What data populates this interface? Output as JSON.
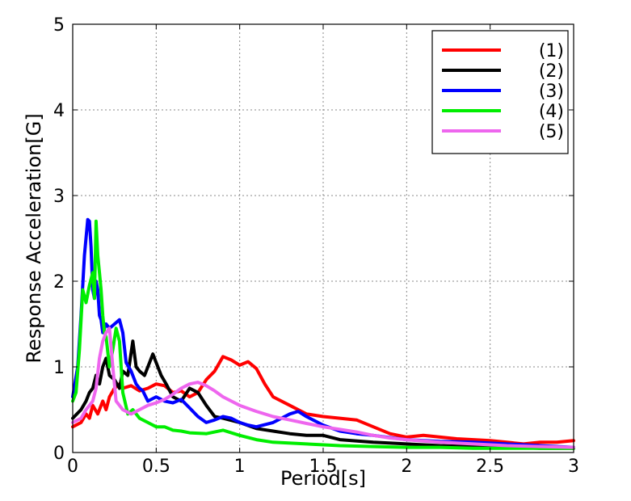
{
  "chart_data": {
    "type": "line",
    "title": "",
    "xlabel": "Period[s]",
    "ylabel": "Response Acceleration[G]",
    "xlim": [
      0,
      3
    ],
    "ylim": [
      0,
      5
    ],
    "xticks": [
      "0",
      "0.5",
      "1",
      "1.5",
      "2",
      "2.5",
      "3"
    ],
    "yticks": [
      "0",
      "1",
      "2",
      "3",
      "4",
      "5"
    ],
    "grid": true,
    "legend_position": "top-right",
    "series": [
      {
        "name": "(1)",
        "color": "#ff0000",
        "x": [
          0.0,
          0.05,
          0.08,
          0.1,
          0.12,
          0.15,
          0.18,
          0.2,
          0.22,
          0.25,
          0.28,
          0.3,
          0.35,
          0.4,
          0.45,
          0.5,
          0.55,
          0.6,
          0.65,
          0.7,
          0.75,
          0.8,
          0.85,
          0.9,
          0.95,
          1.0,
          1.05,
          1.1,
          1.15,
          1.2,
          1.3,
          1.4,
          1.5,
          1.6,
          1.7,
          1.8,
          1.9,
          2.0,
          2.1,
          2.2,
          2.3,
          2.4,
          2.5,
          2.6,
          2.7,
          2.8,
          2.9,
          3.0
        ],
        "y": [
          0.3,
          0.35,
          0.45,
          0.4,
          0.55,
          0.45,
          0.6,
          0.5,
          0.65,
          0.75,
          0.8,
          0.75,
          0.78,
          0.72,
          0.75,
          0.8,
          0.78,
          0.7,
          0.72,
          0.65,
          0.7,
          0.85,
          0.95,
          1.12,
          1.08,
          1.02,
          1.06,
          0.98,
          0.8,
          0.65,
          0.55,
          0.45,
          0.42,
          0.4,
          0.38,
          0.3,
          0.22,
          0.18,
          0.2,
          0.18,
          0.16,
          0.15,
          0.14,
          0.12,
          0.1,
          0.12,
          0.12,
          0.14
        ]
      },
      {
        "name": "(2)",
        "color": "#000000",
        "x": [
          0.0,
          0.05,
          0.08,
          0.1,
          0.12,
          0.14,
          0.16,
          0.18,
          0.2,
          0.22,
          0.25,
          0.28,
          0.3,
          0.33,
          0.36,
          0.38,
          0.4,
          0.43,
          0.46,
          0.48,
          0.5,
          0.53,
          0.56,
          0.6,
          0.65,
          0.7,
          0.75,
          0.8,
          0.85,
          0.9,
          1.0,
          1.1,
          1.2,
          1.3,
          1.4,
          1.5,
          1.6,
          1.8,
          2.0,
          2.2,
          2.4,
          2.6,
          2.8,
          3.0
        ],
        "y": [
          0.4,
          0.5,
          0.6,
          0.7,
          0.75,
          0.9,
          0.8,
          1.0,
          1.1,
          0.9,
          0.85,
          0.75,
          0.95,
          0.9,
          1.3,
          1.0,
          0.95,
          0.9,
          1.05,
          1.15,
          1.05,
          0.9,
          0.8,
          0.65,
          0.6,
          0.75,
          0.7,
          0.55,
          0.42,
          0.4,
          0.35,
          0.28,
          0.25,
          0.22,
          0.2,
          0.2,
          0.15,
          0.12,
          0.1,
          0.08,
          0.07,
          0.06,
          0.05,
          0.05
        ]
      },
      {
        "name": "(3)",
        "color": "#0000ff",
        "x": [
          0.0,
          0.03,
          0.05,
          0.07,
          0.09,
          0.1,
          0.11,
          0.12,
          0.13,
          0.14,
          0.15,
          0.16,
          0.17,
          0.18,
          0.2,
          0.22,
          0.25,
          0.28,
          0.3,
          0.32,
          0.35,
          0.38,
          0.4,
          0.42,
          0.45,
          0.5,
          0.55,
          0.6,
          0.65,
          0.7,
          0.75,
          0.8,
          0.85,
          0.9,
          0.95,
          1.0,
          1.05,
          1.1,
          1.2,
          1.3,
          1.35,
          1.4,
          1.5,
          1.6,
          1.7,
          1.8,
          2.0,
          2.2,
          2.4,
          2.6,
          2.8,
          3.0
        ],
        "y": [
          0.65,
          1.0,
          1.6,
          2.3,
          2.72,
          2.7,
          2.4,
          1.9,
          1.8,
          2.0,
          1.9,
          1.6,
          1.55,
          1.4,
          1.5,
          1.45,
          1.5,
          1.55,
          1.4,
          1.05,
          0.95,
          0.8,
          0.75,
          0.72,
          0.6,
          0.65,
          0.6,
          0.58,
          0.62,
          0.52,
          0.42,
          0.35,
          0.38,
          0.42,
          0.4,
          0.35,
          0.32,
          0.3,
          0.35,
          0.45,
          0.48,
          0.42,
          0.32,
          0.25,
          0.22,
          0.2,
          0.15,
          0.13,
          0.12,
          0.1,
          0.08,
          0.06
        ]
      },
      {
        "name": "(4)",
        "color": "#00ee00",
        "x": [
          0.0,
          0.02,
          0.04,
          0.06,
          0.08,
          0.1,
          0.12,
          0.13,
          0.14,
          0.15,
          0.16,
          0.17,
          0.18,
          0.19,
          0.2,
          0.22,
          0.24,
          0.26,
          0.28,
          0.3,
          0.33,
          0.36,
          0.4,
          0.45,
          0.5,
          0.55,
          0.6,
          0.65,
          0.7,
          0.8,
          0.9,
          1.0,
          1.1,
          1.2,
          1.4,
          1.6,
          1.8,
          2.0,
          2.2,
          2.4,
          2.6,
          2.8,
          3.0
        ],
        "y": [
          0.6,
          0.7,
          1.2,
          1.9,
          1.75,
          1.95,
          2.1,
          1.8,
          2.7,
          2.3,
          2.1,
          1.9,
          1.6,
          1.4,
          1.35,
          1.0,
          1.2,
          1.45,
          1.3,
          0.7,
          0.45,
          0.5,
          0.4,
          0.35,
          0.3,
          0.3,
          0.26,
          0.25,
          0.23,
          0.22,
          0.26,
          0.2,
          0.15,
          0.12,
          0.1,
          0.08,
          0.07,
          0.06,
          0.06,
          0.05,
          0.05,
          0.05,
          0.05
        ]
      },
      {
        "name": "(5)",
        "color": "#ee66ee",
        "x": [
          0.0,
          0.05,
          0.08,
          0.1,
          0.12,
          0.14,
          0.16,
          0.18,
          0.2,
          0.22,
          0.24,
          0.26,
          0.28,
          0.3,
          0.35,
          0.4,
          0.45,
          0.5,
          0.55,
          0.6,
          0.65,
          0.7,
          0.75,
          0.8,
          0.85,
          0.9,
          1.0,
          1.1,
          1.2,
          1.3,
          1.4,
          1.5,
          1.6,
          1.7,
          1.8,
          1.9,
          2.0,
          2.2,
          2.4,
          2.6,
          2.8,
          3.0
        ],
        "y": [
          0.35,
          0.4,
          0.5,
          0.55,
          0.6,
          0.75,
          1.1,
          1.3,
          1.4,
          1.45,
          1.0,
          0.6,
          0.55,
          0.5,
          0.45,
          0.5,
          0.55,
          0.58,
          0.62,
          0.68,
          0.75,
          0.8,
          0.82,
          0.78,
          0.72,
          0.65,
          0.55,
          0.48,
          0.42,
          0.38,
          0.34,
          0.3,
          0.27,
          0.24,
          0.2,
          0.17,
          0.15,
          0.12,
          0.1,
          0.08,
          0.07,
          0.06
        ]
      }
    ]
  }
}
